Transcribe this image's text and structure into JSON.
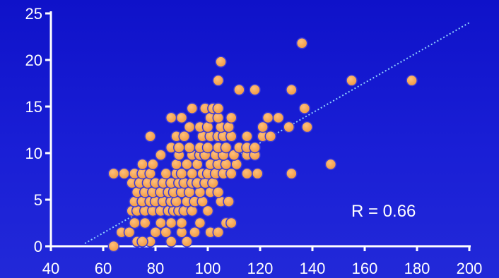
{
  "chart_data": {
    "type": "scatter",
    "title": "",
    "xlabel": "",
    "ylabel": "",
    "xlim": [
      40,
      200
    ],
    "ylim": [
      0,
      25
    ],
    "xticks": [
      40,
      60,
      80,
      100,
      120,
      140,
      160,
      180,
      200
    ],
    "yticks": [
      0,
      5,
      10,
      15,
      20,
      25
    ],
    "grid": false,
    "legend": "none",
    "annotation": "R = 0.66",
    "trendline": {
      "style": "dotted",
      "x": [
        53,
        200
      ],
      "y": [
        0.3,
        24.0
      ]
    },
    "colors": {
      "background": "#1a1fd6",
      "marker_fill": "#f5a04a",
      "marker_edge": "#3a3ad8",
      "axis": "#ffffff",
      "trendline": "#8fd0ff"
    },
    "points": [
      [
        64,
        0
      ],
      [
        78,
        0.5
      ],
      [
        86,
        0.5
      ],
      [
        92,
        0.5
      ],
      [
        73,
        0.5
      ],
      [
        75,
        0.5
      ],
      [
        67,
        1.5
      ],
      [
        70,
        1.5
      ],
      [
        80,
        1.5
      ],
      [
        84,
        1.5
      ],
      [
        90,
        1.5
      ],
      [
        95,
        1.5
      ],
      [
        101,
        1.5
      ],
      [
        104,
        1.5
      ],
      [
        72,
        2.5
      ],
      [
        76,
        2.5
      ],
      [
        82,
        2.5
      ],
      [
        86,
        2.5
      ],
      [
        90,
        2.5
      ],
      [
        97,
        2.5
      ],
      [
        107,
        2.5
      ],
      [
        109,
        2.5
      ],
      [
        71,
        3.8
      ],
      [
        73,
        3.8
      ],
      [
        76,
        3.8
      ],
      [
        79,
        3.8
      ],
      [
        82,
        3.8
      ],
      [
        85,
        3.8
      ],
      [
        87,
        3.8
      ],
      [
        89,
        3.8
      ],
      [
        91,
        3.8
      ],
      [
        94,
        3.8
      ],
      [
        100,
        3.8
      ],
      [
        72,
        4.8
      ],
      [
        75,
        4.8
      ],
      [
        78,
        4.8
      ],
      [
        80,
        4.8
      ],
      [
        83,
        4.8
      ],
      [
        86,
        4.8
      ],
      [
        88,
        4.8
      ],
      [
        92,
        4.8
      ],
      [
        95,
        4.8
      ],
      [
        98,
        4.8
      ],
      [
        105,
        4.8
      ],
      [
        108,
        4.8
      ],
      [
        73,
        5.8
      ],
      [
        76,
        5.8
      ],
      [
        79,
        5.8
      ],
      [
        82,
        5.8
      ],
      [
        85,
        5.8
      ],
      [
        87,
        5.8
      ],
      [
        90,
        5.8
      ],
      [
        93,
        5.8
      ],
      [
        97,
        5.8
      ],
      [
        101,
        5.8
      ],
      [
        104,
        5.8
      ],
      [
        71,
        6.8
      ],
      [
        74,
        6.8
      ],
      [
        77,
        6.8
      ],
      [
        80,
        6.8
      ],
      [
        83,
        6.8
      ],
      [
        86,
        6.8
      ],
      [
        89,
        6.8
      ],
      [
        91,
        6.8
      ],
      [
        94,
        6.8
      ],
      [
        96,
        6.8
      ],
      [
        99,
        6.8
      ],
      [
        102,
        6.8
      ],
      [
        64,
        7.8
      ],
      [
        68,
        7.8
      ],
      [
        72,
        7.8
      ],
      [
        75,
        7.8
      ],
      [
        78,
        7.8
      ],
      [
        84,
        7.8
      ],
      [
        88,
        7.8
      ],
      [
        90,
        7.8
      ],
      [
        94,
        7.8
      ],
      [
        98,
        7.8
      ],
      [
        100,
        7.8
      ],
      [
        103,
        7.8
      ],
      [
        106,
        7.8
      ],
      [
        109,
        7.8
      ],
      [
        115,
        7.8
      ],
      [
        119,
        7.8
      ],
      [
        132,
        7.8
      ],
      [
        75,
        8.8
      ],
      [
        79,
        8.8
      ],
      [
        88,
        8.8
      ],
      [
        92,
        8.8
      ],
      [
        96,
        8.8
      ],
      [
        101,
        8.8
      ],
      [
        104,
        8.8
      ],
      [
        107,
        8.8
      ],
      [
        111,
        8.8
      ],
      [
        147,
        8.8
      ],
      [
        82,
        9.8
      ],
      [
        89,
        9.8
      ],
      [
        94,
        9.8
      ],
      [
        97,
        9.8
      ],
      [
        99,
        9.8
      ],
      [
        103,
        9.8
      ],
      [
        106,
        9.8
      ],
      [
        110,
        9.8
      ],
      [
        115,
        9.8
      ],
      [
        118,
        9.8
      ],
      [
        86,
        10.6
      ],
      [
        89,
        10.6
      ],
      [
        93,
        10.6
      ],
      [
        97,
        10.6
      ],
      [
        100,
        10.6
      ],
      [
        104,
        10.6
      ],
      [
        107,
        10.6
      ],
      [
        112,
        10.6
      ],
      [
        115,
        10.6
      ],
      [
        118,
        10.6
      ],
      [
        78,
        11.8
      ],
      [
        88,
        11.8
      ],
      [
        91,
        11.8
      ],
      [
        98,
        11.8
      ],
      [
        101,
        11.8
      ],
      [
        104,
        11.8
      ],
      [
        106,
        11.8
      ],
      [
        109,
        11.8
      ],
      [
        115,
        11.8
      ],
      [
        121,
        11.8
      ],
      [
        124,
        11.8
      ],
      [
        93,
        12.8
      ],
      [
        97,
        12.8
      ],
      [
        100,
        12.8
      ],
      [
        105,
        12.8
      ],
      [
        108,
        12.8
      ],
      [
        121,
        12.8
      ],
      [
        131,
        12.8
      ],
      [
        138,
        12.8
      ],
      [
        86,
        13.8
      ],
      [
        90,
        13.8
      ],
      [
        101,
        13.8
      ],
      [
        104,
        13.8
      ],
      [
        109,
        13.8
      ],
      [
        123,
        13.8
      ],
      [
        127,
        13.8
      ],
      [
        94,
        14.8
      ],
      [
        99,
        14.8
      ],
      [
        102,
        14.8
      ],
      [
        104,
        14.8
      ],
      [
        137,
        14.8
      ],
      [
        112,
        16.8
      ],
      [
        118,
        16.8
      ],
      [
        132,
        16.8
      ],
      [
        104,
        17.8
      ],
      [
        155,
        17.8
      ],
      [
        178,
        17.8
      ],
      [
        105,
        19.8
      ],
      [
        136,
        21.8
      ]
    ]
  }
}
